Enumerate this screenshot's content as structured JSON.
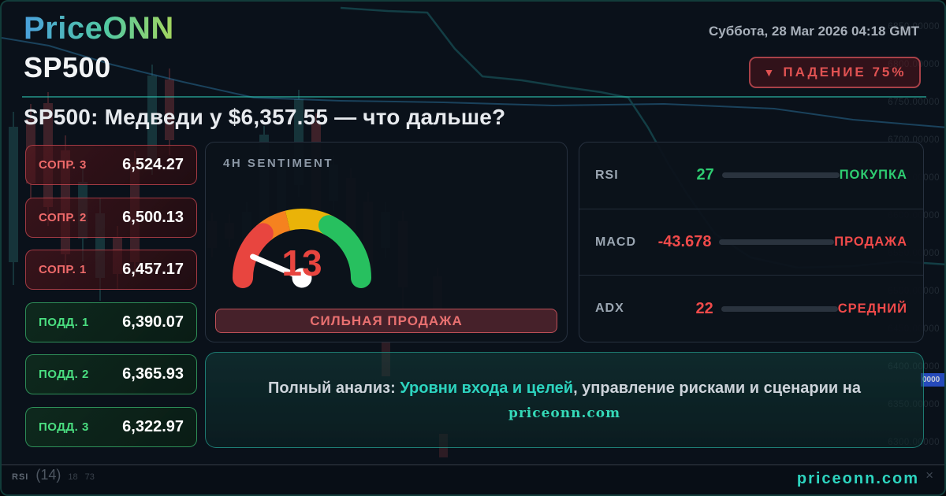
{
  "header": {
    "logo": "PriceONN",
    "datetime": "Суббота, 28 Mar 2026 04:18 GMT",
    "symbol": "SP500",
    "trend_badge": {
      "arrow": "▼",
      "label": "ПАДЕНИЕ 75%",
      "color": "#e05252"
    }
  },
  "title": "SP500: Медведи у $6,357.55 — что дальше?",
  "levels": {
    "items": [
      {
        "type": "resistance",
        "label": "СОПР. 3",
        "value": "6,524.27"
      },
      {
        "type": "resistance",
        "label": "СОПР. 2",
        "value": "6,500.13"
      },
      {
        "type": "resistance",
        "label": "СОПР. 1",
        "value": "6,457.17"
      },
      {
        "type": "support",
        "label": "ПОДД. 1",
        "value": "6,390.07"
      },
      {
        "type": "support",
        "label": "ПОДД. 2",
        "value": "6,365.93"
      },
      {
        "type": "support",
        "label": "ПОДД. 3",
        "value": "6,322.97"
      }
    ]
  },
  "gauge": {
    "title": "4H SENTIMENT",
    "value": 13,
    "min": 0,
    "max": 100,
    "display_value": "13",
    "label": "СИЛЬНАЯ ПРОДАЖА",
    "segment_colors": {
      "red": "#e8453f",
      "orange": "#f5821f",
      "yellow": "#eab308",
      "green": "#27c05f"
    }
  },
  "indicators": {
    "rows": [
      {
        "label": "RSI",
        "value": "27",
        "percent": 27,
        "status": "ПОКУПКА",
        "color": "#2ecc71"
      },
      {
        "label": "MACD",
        "value": "-43.678",
        "percent": 100,
        "status": "ПРОДАЖА",
        "color": "#f04a4a"
      },
      {
        "label": "ADX",
        "value": "22",
        "percent": 22,
        "status": "СРЕДНИЙ",
        "color": "#f04a4a"
      }
    ]
  },
  "footer": {
    "prefix": "Полный анализ: ",
    "highlight": "Уровни входа и целей",
    "suffix": ", управление рисками и сценарии на",
    "domain": "priceonn.com"
  },
  "bottom_bar": {
    "indicator": "RSI",
    "period": "(14)",
    "lower_band": "18",
    "upper_band": "73",
    "close_icon": "×",
    "site": "priceonn.com"
  },
  "background": {
    "axis_labels": [
      "6850.00000",
      "6800.00000",
      "6750.00000",
      "6700.00000",
      "6650.00000",
      "6600.00000",
      "6550.00000",
      "6500.00000",
      "6450.00000",
      "6400.00000",
      "6350.00000",
      "6300.00000"
    ],
    "price_tag": "0000"
  },
  "colors": {
    "accent_teal": "#2dd4bf",
    "bear_red": "#e05252",
    "bull_green": "#4ade80",
    "card_bg": "#0a111a"
  }
}
